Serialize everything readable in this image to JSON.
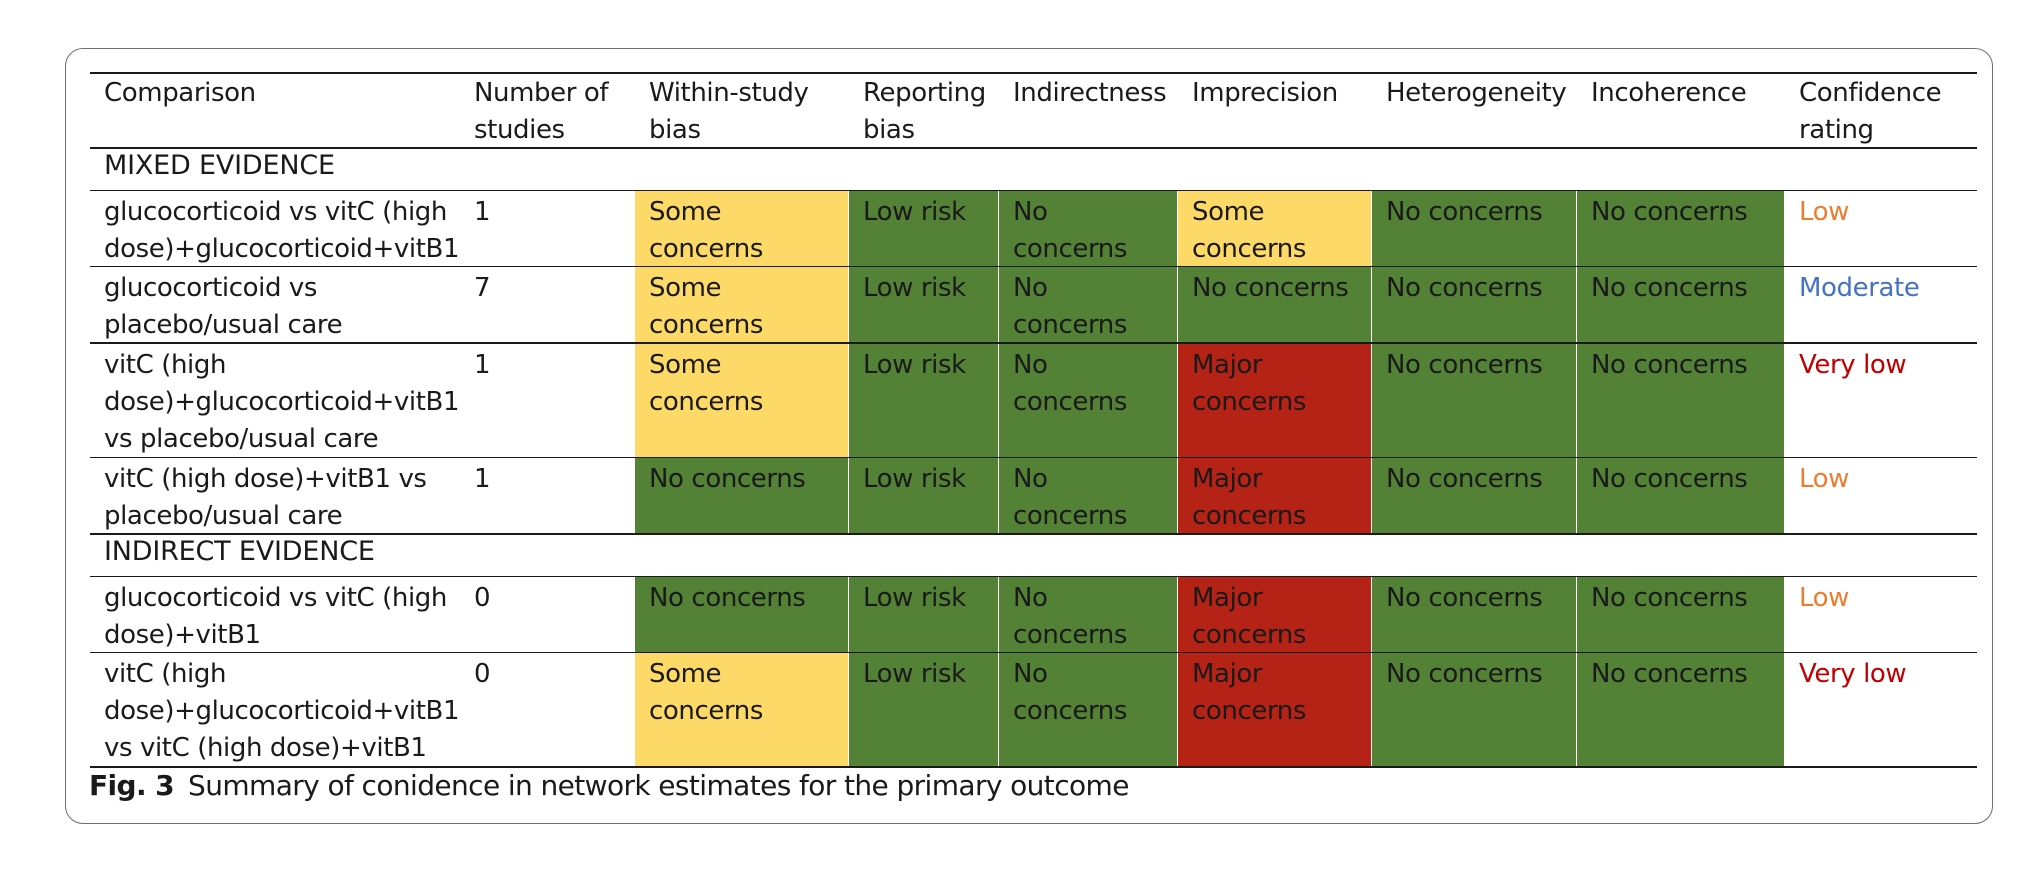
{
  "colors": {
    "some_concerns": "#fdd967",
    "no_concerns": "#538135",
    "low_risk": "#538135",
    "major_concerns": "#b52316",
    "rating_low": "#ed7d31",
    "rating_moderate": "#4472c4",
    "rating_very_low": "#c00000"
  },
  "table": {
    "headers": [
      "Comparison",
      "Number of\nstudies",
      "Within-study\nbias",
      "Reporting\nbias",
      "Indirectness",
      "Imprecision",
      "Heterogeneity",
      "Incoherence",
      "Confidence\nrating"
    ],
    "sections": [
      {
        "title": "MIXED EVIDENCE",
        "rows": [
          {
            "comparison": "glucocorticoid vs vitC (high\ndose)+glucocorticoid+vitB1",
            "n": "1",
            "cells": [
              {
                "text": "Some\nconcerns",
                "level": "some_concerns"
              },
              {
                "text": "Low risk",
                "level": "low_risk"
              },
              {
                "text": "No\nconcerns",
                "level": "no_concerns"
              },
              {
                "text": "Some\nconcerns",
                "level": "some_concerns"
              },
              {
                "text": "No concerns",
                "level": "no_concerns"
              },
              {
                "text": "No concerns",
                "level": "no_concerns"
              }
            ],
            "rating": "Low",
            "rating_level": "rating_low"
          },
          {
            "comparison": "glucocorticoid vs\nplacebo/usual care",
            "n": "7",
            "cells": [
              {
                "text": "Some\nconcerns",
                "level": "some_concerns"
              },
              {
                "text": "Low risk",
                "level": "low_risk"
              },
              {
                "text": "No\nconcerns",
                "level": "no_concerns"
              },
              {
                "text": "No concerns",
                "level": "no_concerns"
              },
              {
                "text": "No concerns",
                "level": "no_concerns"
              },
              {
                "text": "No concerns",
                "level": "no_concerns"
              }
            ],
            "rating": "Moderate",
            "rating_level": "rating_moderate"
          },
          {
            "comparison": "vitC (high\ndose)+glucocorticoid+vitB1\nvs placebo/usual care",
            "n": "1",
            "cells": [
              {
                "text": "Some\nconcerns",
                "level": "some_concerns"
              },
              {
                "text": "Low risk",
                "level": "low_risk"
              },
              {
                "text": "No\nconcerns",
                "level": "no_concerns"
              },
              {
                "text": "Major\nconcerns",
                "level": "major_concerns"
              },
              {
                "text": "No concerns",
                "level": "no_concerns"
              },
              {
                "text": "No concerns",
                "level": "no_concerns"
              }
            ],
            "rating": "Very low",
            "rating_level": "rating_very_low"
          },
          {
            "comparison": "vitC (high dose)+vitB1 vs\nplacebo/usual care",
            "n": "1",
            "cells": [
              {
                "text": "No concerns",
                "level": "no_concerns"
              },
              {
                "text": "Low risk",
                "level": "low_risk"
              },
              {
                "text": "No\nconcerns",
                "level": "no_concerns"
              },
              {
                "text": "Major\nconcerns",
                "level": "major_concerns"
              },
              {
                "text": "No concerns",
                "level": "no_concerns"
              },
              {
                "text": "No concerns",
                "level": "no_concerns"
              }
            ],
            "rating": "Low",
            "rating_level": "rating_low"
          }
        ]
      },
      {
        "title": "INDIRECT EVIDENCE",
        "rows": [
          {
            "comparison": "glucocorticoid vs vitC (high\ndose)+vitB1",
            "n": "0",
            "cells": [
              {
                "text": "No concerns",
                "level": "no_concerns"
              },
              {
                "text": "Low risk",
                "level": "low_risk"
              },
              {
                "text": "No\nconcerns",
                "level": "no_concerns"
              },
              {
                "text": "Major\nconcerns",
                "level": "major_concerns"
              },
              {
                "text": "No concerns",
                "level": "no_concerns"
              },
              {
                "text": "No concerns",
                "level": "no_concerns"
              }
            ],
            "rating": "Low",
            "rating_level": "rating_low"
          },
          {
            "comparison": "vitC (high\ndose)+glucocorticoid+vitB1\nvs vitC (high dose)+vitB1",
            "n": "0",
            "cells": [
              {
                "text": "Some\nconcerns",
                "level": "some_concerns"
              },
              {
                "text": "Low risk",
                "level": "low_risk"
              },
              {
                "text": "No\nconcerns",
                "level": "no_concerns"
              },
              {
                "text": "Major\nconcerns",
                "level": "major_concerns"
              },
              {
                "text": "No concerns",
                "level": "no_concerns"
              },
              {
                "text": "No concerns",
                "level": "no_concerns"
              }
            ],
            "rating": "Very low",
            "rating_level": "rating_very_low"
          }
        ]
      }
    ]
  },
  "caption": {
    "label": "Fig. 3",
    "text": "Summary of conidence in network estimates for the primary outcome"
  }
}
